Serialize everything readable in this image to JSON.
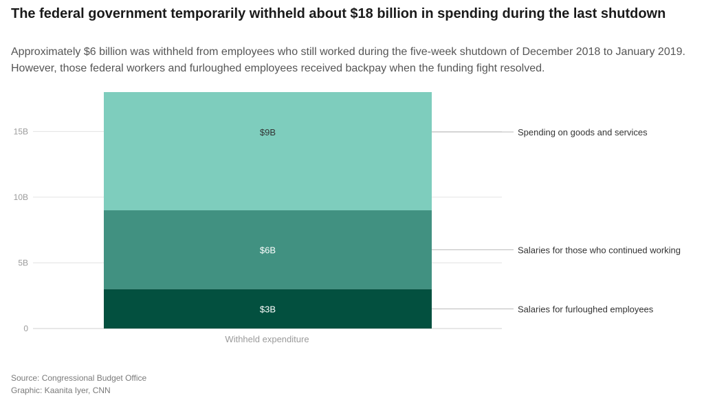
{
  "header": {
    "title": "The federal government temporarily withheld about $18 billion in spending during the last shutdown",
    "subtitle": "Approximately $6 billion was withheld from employees who still worked during the five-week shutdown of December 2018 to January 2019. However, those federal workers and furloughed employees received backpay when the funding fight resolved."
  },
  "footer": {
    "source": "Source: Congressional Budget Office",
    "credit": "Graphic: Kaanita Iyer, CNN"
  },
  "colors": {
    "grid": "#e3e3e3",
    "axis_text": "#9a9a9a",
    "leader": "#b8b8b8",
    "label_text": "#333333"
  },
  "chart_data": {
    "type": "bar",
    "stacked": true,
    "title": "The federal government temporarily withheld about $18 billion in spending during the last shutdown",
    "categories": [
      "Withheld expenditure"
    ],
    "xlabel": "",
    "ylabel": "",
    "ylim": [
      0,
      18
    ],
    "yticks": [
      0,
      5,
      10,
      15
    ],
    "ytick_labels": [
      "0",
      "5B",
      "10B",
      "15B"
    ],
    "grid": true,
    "legend": "right",
    "series": [
      {
        "name": "Salaries for furloughed employees",
        "values": [
          3
        ],
        "label": "$3B",
        "color": "#03503f",
        "text_color": "#ffffff"
      },
      {
        "name": "Salaries for those who continued working",
        "values": [
          6
        ],
        "label": "$6B",
        "color": "#419181",
        "text_color": "#ffffff"
      },
      {
        "name": "Spending on goods and services",
        "values": [
          9
        ],
        "label": "$9B",
        "color": "#7ecdbd",
        "text_color": "#333333"
      }
    ]
  }
}
